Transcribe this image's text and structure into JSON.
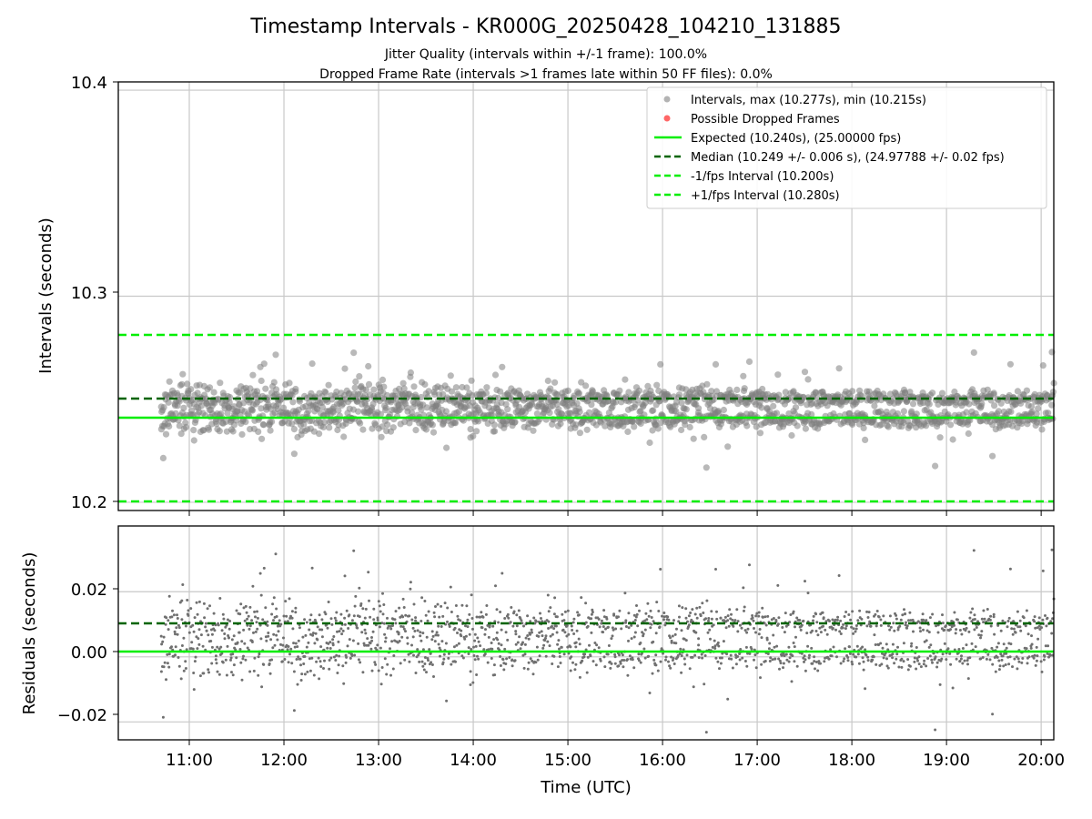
{
  "chart_data": [
    {
      "type": "scatter",
      "title": "Timestamp Intervals - KR000G_20250428_104210_131885",
      "subtitle": [
        "Jitter Quality (intervals within +/-1 frame): 100.0%",
        "Dropped Frame Rate (intervals >1 frames late within 50 FF files): 0.0%"
      ],
      "ylabel": "Intervals (seconds)",
      "ylim": [
        10.196,
        10.404
      ],
      "xlim": [
        "10:15",
        "20:08"
      ],
      "y_ticks": [
        "10.2",
        "10.3",
        "10.4"
      ],
      "grid": true,
      "legend_position": "top-right",
      "legend": [
        "Intervals, max (10.277s), min (10.215s)",
        "Possible Dropped Frames",
        "Expected (10.240s), (25.00000 fps)",
        "Median (10.249 +/- 0.006 s), (24.97788 +/- 0.02 fps)",
        "-1/fps Interval (10.200s)",
        "+1/fps Interval (10.280s)"
      ],
      "reference_lines": {
        "expected": 10.24,
        "median": 10.249,
        "minus_one_frame": 10.2,
        "plus_one_frame": 10.28
      },
      "series": [
        {
          "name": "Intervals, max (10.277s), min (10.215s)",
          "x_start": "10:42",
          "x_end": "20:08",
          "center": 10.246,
          "spread_early": 0.01,
          "spread_late": 0.005,
          "max": 10.277,
          "min": 10.215
        }
      ],
      "colors": {
        "points": "#808080",
        "dropped": "#ff6666",
        "expected": "#00ee00",
        "median": "#006400",
        "bounds": "#00ee00"
      }
    },
    {
      "type": "scatter",
      "xlabel": "Time (UTC)",
      "ylabel": "Residuals (seconds)",
      "ylim": [
        -0.0255,
        0.0402
      ],
      "x_ticks": [
        "11:00",
        "12:00",
        "13:00",
        "14:00",
        "15:00",
        "16:00",
        "17:00",
        "18:00",
        "19:00",
        "20:00"
      ],
      "y_ticks": [
        "0.02",
        "0.00",
        "−0.02"
      ],
      "grid": true,
      "reference_lines": {
        "zero": 0.0,
        "median": 0.009
      }
    }
  ]
}
